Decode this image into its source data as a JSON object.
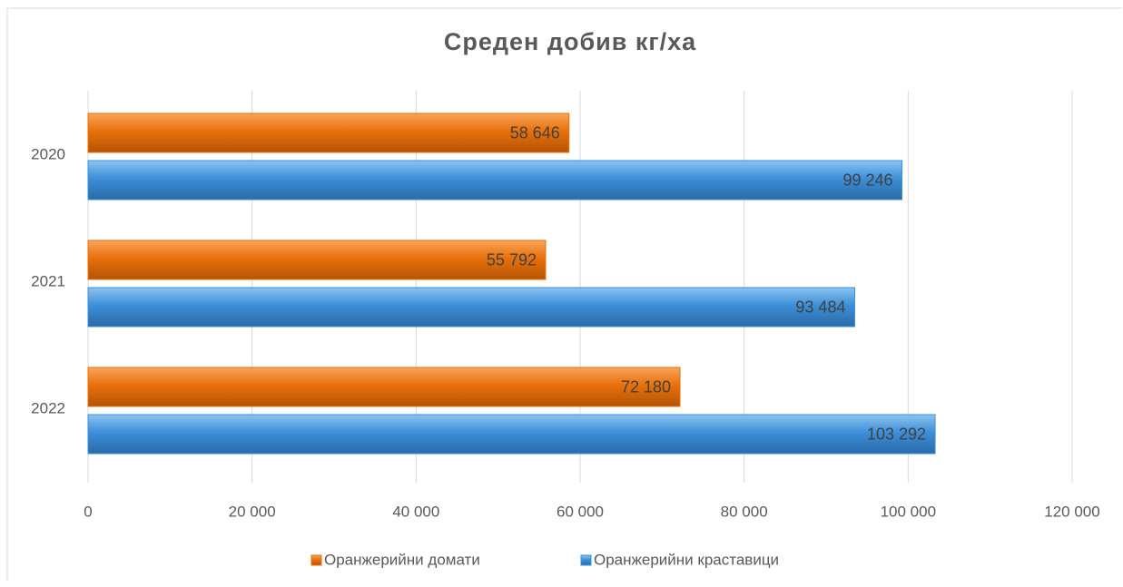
{
  "chart_data": {
    "type": "bar",
    "orientation": "horizontal",
    "title": "Среден добив кг/ха",
    "categories": [
      "2020",
      "2021",
      "2022"
    ],
    "series": [
      {
        "name": "Оранжерийни домати",
        "color": "#e8710a",
        "values": [
          58646,
          55792,
          72180
        ],
        "value_labels": [
          "58 646",
          "55 792",
          "72 180"
        ]
      },
      {
        "name": "Оранжерийни краставици",
        "color": "#3d8fd8",
        "values": [
          99246,
          93484,
          103292
        ],
        "value_labels": [
          "99 246",
          "93 484",
          "103 292"
        ]
      }
    ],
    "xlim": [
      0,
      120000
    ],
    "xticks": [
      0,
      {
        "value": 20000,
        "label": "20 000"
      },
      {
        "value": 40000,
        "label": "40 000"
      },
      {
        "value": 60000,
        "label": "60 000"
      },
      {
        "value": 80000,
        "label": "80 000"
      },
      {
        "value": 100000,
        "label": "100 000"
      },
      {
        "value": 120000,
        "label": "120 000"
      }
    ],
    "grid": true,
    "legend": "bottom"
  }
}
